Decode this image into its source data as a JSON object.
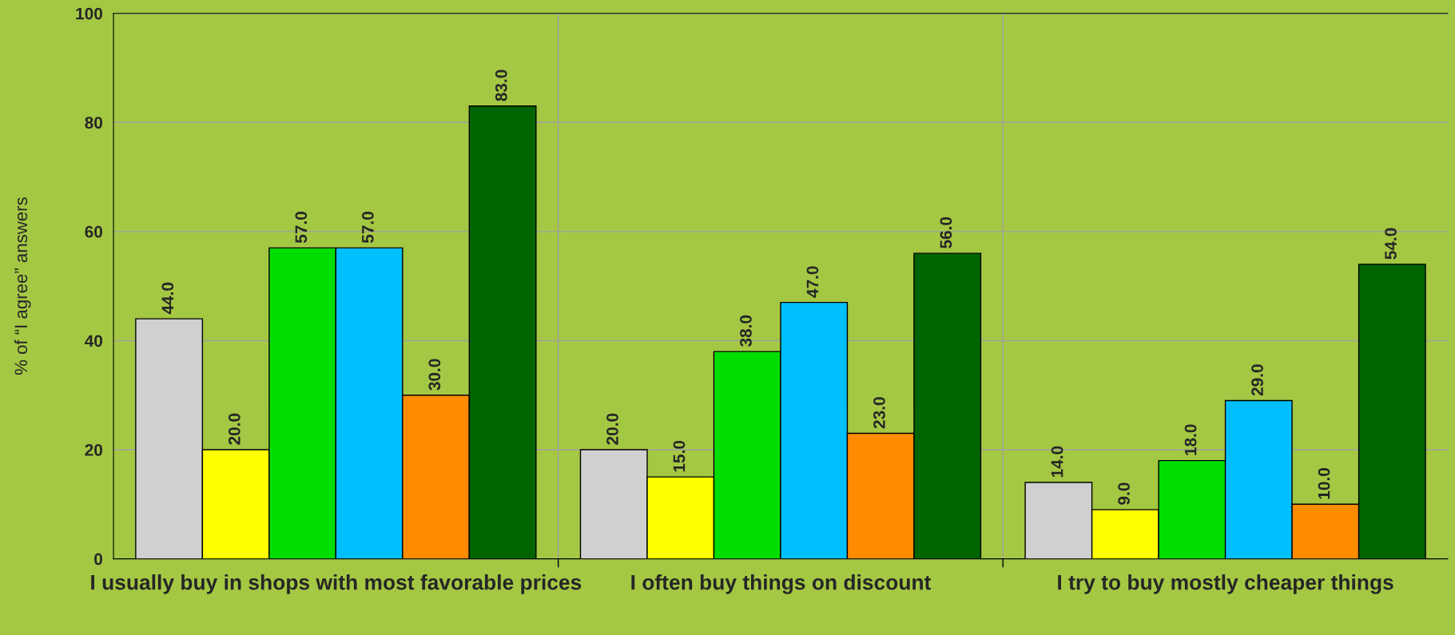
{
  "chart_data": {
    "type": "bar",
    "ylabel": "% of “I agree” answers",
    "categories": [
      "I usually buy in shops with most favorable prices",
      "I often buy things on discount",
      "I try to buy mostly cheaper things"
    ],
    "series": [
      {
        "color": "#d0d0d0",
        "values": [
          44,
          20,
          14
        ],
        "value_labels": [
          "44.0",
          "20.0",
          "14.0"
        ]
      },
      {
        "color": "#ffff00",
        "values": [
          20,
          15,
          9
        ],
        "value_labels": [
          "20.0",
          "15.0",
          "9.0"
        ]
      },
      {
        "color": "#00dd00",
        "values": [
          57,
          38,
          18
        ],
        "value_labels": [
          "57.0",
          "38.0",
          "18.0"
        ]
      },
      {
        "color": "#00bfff",
        "values": [
          57,
          47,
          29
        ],
        "value_labels": [
          "57.0",
          "47.0",
          "29.0"
        ]
      },
      {
        "color": "#ff8c00",
        "values": [
          30,
          23,
          10
        ],
        "value_labels": [
          "30.0",
          "23.0",
          "10.0"
        ]
      },
      {
        "color": "#006400",
        "values": [
          83,
          56,
          54
        ],
        "value_labels": [
          "83.0",
          "56.0",
          "54.0"
        ]
      }
    ],
    "ylim": [
      0,
      100
    ],
    "yticks": [
      0,
      20,
      40,
      60,
      80,
      100
    ],
    "grid": true
  }
}
